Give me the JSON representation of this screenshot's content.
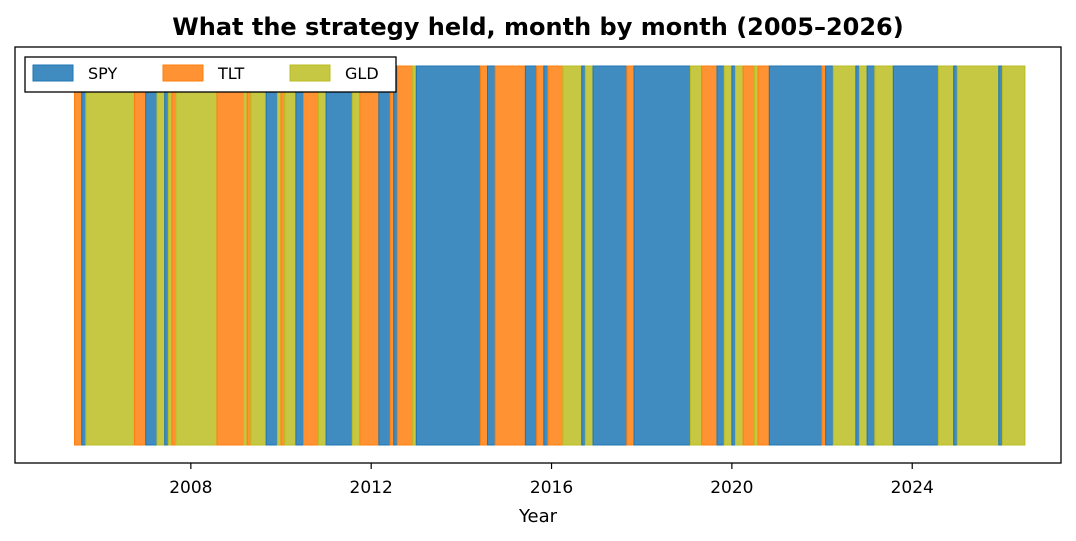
{
  "chart_data": {
    "type": "bar",
    "title": "What the strategy held, month by month (2005–2026)",
    "xlabel": "Year",
    "ylabel": "",
    "x_range": [
      2004.1,
      2027.3
    ],
    "x_ticks": [
      2008,
      2012,
      2016,
      2020,
      2024
    ],
    "legend": {
      "position": "top-left",
      "columns": 3
    },
    "series": [
      {
        "name": "SPY",
        "color": "#1f77b4"
      },
      {
        "name": "TLT",
        "color": "#ff7f0e"
      },
      {
        "name": "GLD",
        "color": "#bcbd22"
      }
    ],
    "holdings": [
      {
        "start": 2005.42,
        "end": 2005.58,
        "asset": "TLT"
      },
      {
        "start": 2005.58,
        "end": 2005.67,
        "asset": "SPY"
      },
      {
        "start": 2005.67,
        "end": 2006.75,
        "asset": "GLD"
      },
      {
        "start": 2006.75,
        "end": 2007.0,
        "asset": "TLT"
      },
      {
        "start": 2007.0,
        "end": 2007.25,
        "asset": "SPY"
      },
      {
        "start": 2007.25,
        "end": 2007.42,
        "asset": "GLD"
      },
      {
        "start": 2007.42,
        "end": 2007.5,
        "asset": "SPY"
      },
      {
        "start": 2007.5,
        "end": 2007.58,
        "asset": "GLD"
      },
      {
        "start": 2007.58,
        "end": 2007.67,
        "asset": "TLT"
      },
      {
        "start": 2007.67,
        "end": 2008.58,
        "asset": "GLD"
      },
      {
        "start": 2008.58,
        "end": 2009.17,
        "asset": "TLT"
      },
      {
        "start": 2009.17,
        "end": 2009.25,
        "asset": "GLD"
      },
      {
        "start": 2009.25,
        "end": 2009.33,
        "asset": "TLT"
      },
      {
        "start": 2009.33,
        "end": 2009.67,
        "asset": "GLD"
      },
      {
        "start": 2009.67,
        "end": 2009.92,
        "asset": "SPY"
      },
      {
        "start": 2009.92,
        "end": 2010.0,
        "asset": "GLD"
      },
      {
        "start": 2010.0,
        "end": 2010.08,
        "asset": "TLT"
      },
      {
        "start": 2010.08,
        "end": 2010.33,
        "asset": "GLD"
      },
      {
        "start": 2010.33,
        "end": 2010.5,
        "asset": "SPY"
      },
      {
        "start": 2010.5,
        "end": 2010.83,
        "asset": "TLT"
      },
      {
        "start": 2010.83,
        "end": 2011.0,
        "asset": "GLD"
      },
      {
        "start": 2011.0,
        "end": 2011.58,
        "asset": "SPY"
      },
      {
        "start": 2011.58,
        "end": 2011.75,
        "asset": "GLD"
      },
      {
        "start": 2011.75,
        "end": 2012.17,
        "asset": "TLT"
      },
      {
        "start": 2012.17,
        "end": 2012.42,
        "asset": "SPY"
      },
      {
        "start": 2012.42,
        "end": 2012.5,
        "asset": "TLT"
      },
      {
        "start": 2012.5,
        "end": 2012.58,
        "asset": "SPY"
      },
      {
        "start": 2012.58,
        "end": 2012.92,
        "asset": "TLT"
      },
      {
        "start": 2012.92,
        "end": 2013.0,
        "asset": "GLD"
      },
      {
        "start": 2013.0,
        "end": 2014.42,
        "asset": "SPY"
      },
      {
        "start": 2014.42,
        "end": 2014.58,
        "asset": "TLT"
      },
      {
        "start": 2014.58,
        "end": 2014.75,
        "asset": "SPY"
      },
      {
        "start": 2014.75,
        "end": 2015.42,
        "asset": "TLT"
      },
      {
        "start": 2015.42,
        "end": 2015.67,
        "asset": "SPY"
      },
      {
        "start": 2015.67,
        "end": 2015.83,
        "asset": "TLT"
      },
      {
        "start": 2015.83,
        "end": 2015.92,
        "asset": "SPY"
      },
      {
        "start": 2015.92,
        "end": 2016.25,
        "asset": "TLT"
      },
      {
        "start": 2016.25,
        "end": 2016.67,
        "asset": "GLD"
      },
      {
        "start": 2016.67,
        "end": 2016.75,
        "asset": "SPY"
      },
      {
        "start": 2016.75,
        "end": 2016.92,
        "asset": "GLD"
      },
      {
        "start": 2016.92,
        "end": 2017.67,
        "asset": "SPY"
      },
      {
        "start": 2017.67,
        "end": 2017.83,
        "asset": "TLT"
      },
      {
        "start": 2017.83,
        "end": 2019.08,
        "asset": "SPY"
      },
      {
        "start": 2019.08,
        "end": 2019.33,
        "asset": "GLD"
      },
      {
        "start": 2019.33,
        "end": 2019.67,
        "asset": "TLT"
      },
      {
        "start": 2019.67,
        "end": 2019.83,
        "asset": "SPY"
      },
      {
        "start": 2019.83,
        "end": 2020.0,
        "asset": "GLD"
      },
      {
        "start": 2020.0,
        "end": 2020.08,
        "asset": "SPY"
      },
      {
        "start": 2020.08,
        "end": 2020.25,
        "asset": "GLD"
      },
      {
        "start": 2020.25,
        "end": 2020.5,
        "asset": "TLT"
      },
      {
        "start": 2020.5,
        "end": 2020.58,
        "asset": "GLD"
      },
      {
        "start": 2020.58,
        "end": 2020.83,
        "asset": "TLT"
      },
      {
        "start": 2020.83,
        "end": 2022.0,
        "asset": "SPY"
      },
      {
        "start": 2022.0,
        "end": 2022.08,
        "asset": "TLT"
      },
      {
        "start": 2022.08,
        "end": 2022.25,
        "asset": "SPY"
      },
      {
        "start": 2022.25,
        "end": 2022.75,
        "asset": "GLD"
      },
      {
        "start": 2022.75,
        "end": 2022.83,
        "asset": "SPY"
      },
      {
        "start": 2022.83,
        "end": 2023.0,
        "asset": "GLD"
      },
      {
        "start": 2023.0,
        "end": 2023.17,
        "asset": "SPY"
      },
      {
        "start": 2023.17,
        "end": 2023.58,
        "asset": "GLD"
      },
      {
        "start": 2023.58,
        "end": 2024.58,
        "asset": "SPY"
      },
      {
        "start": 2024.58,
        "end": 2024.92,
        "asset": "GLD"
      },
      {
        "start": 2024.92,
        "end": 2025.0,
        "asset": "SPY"
      },
      {
        "start": 2025.0,
        "end": 2025.92,
        "asset": "GLD"
      },
      {
        "start": 2025.92,
        "end": 2026.0,
        "asset": "SPY"
      },
      {
        "start": 2026.0,
        "end": 2026.5,
        "asset": "GLD"
      }
    ]
  }
}
